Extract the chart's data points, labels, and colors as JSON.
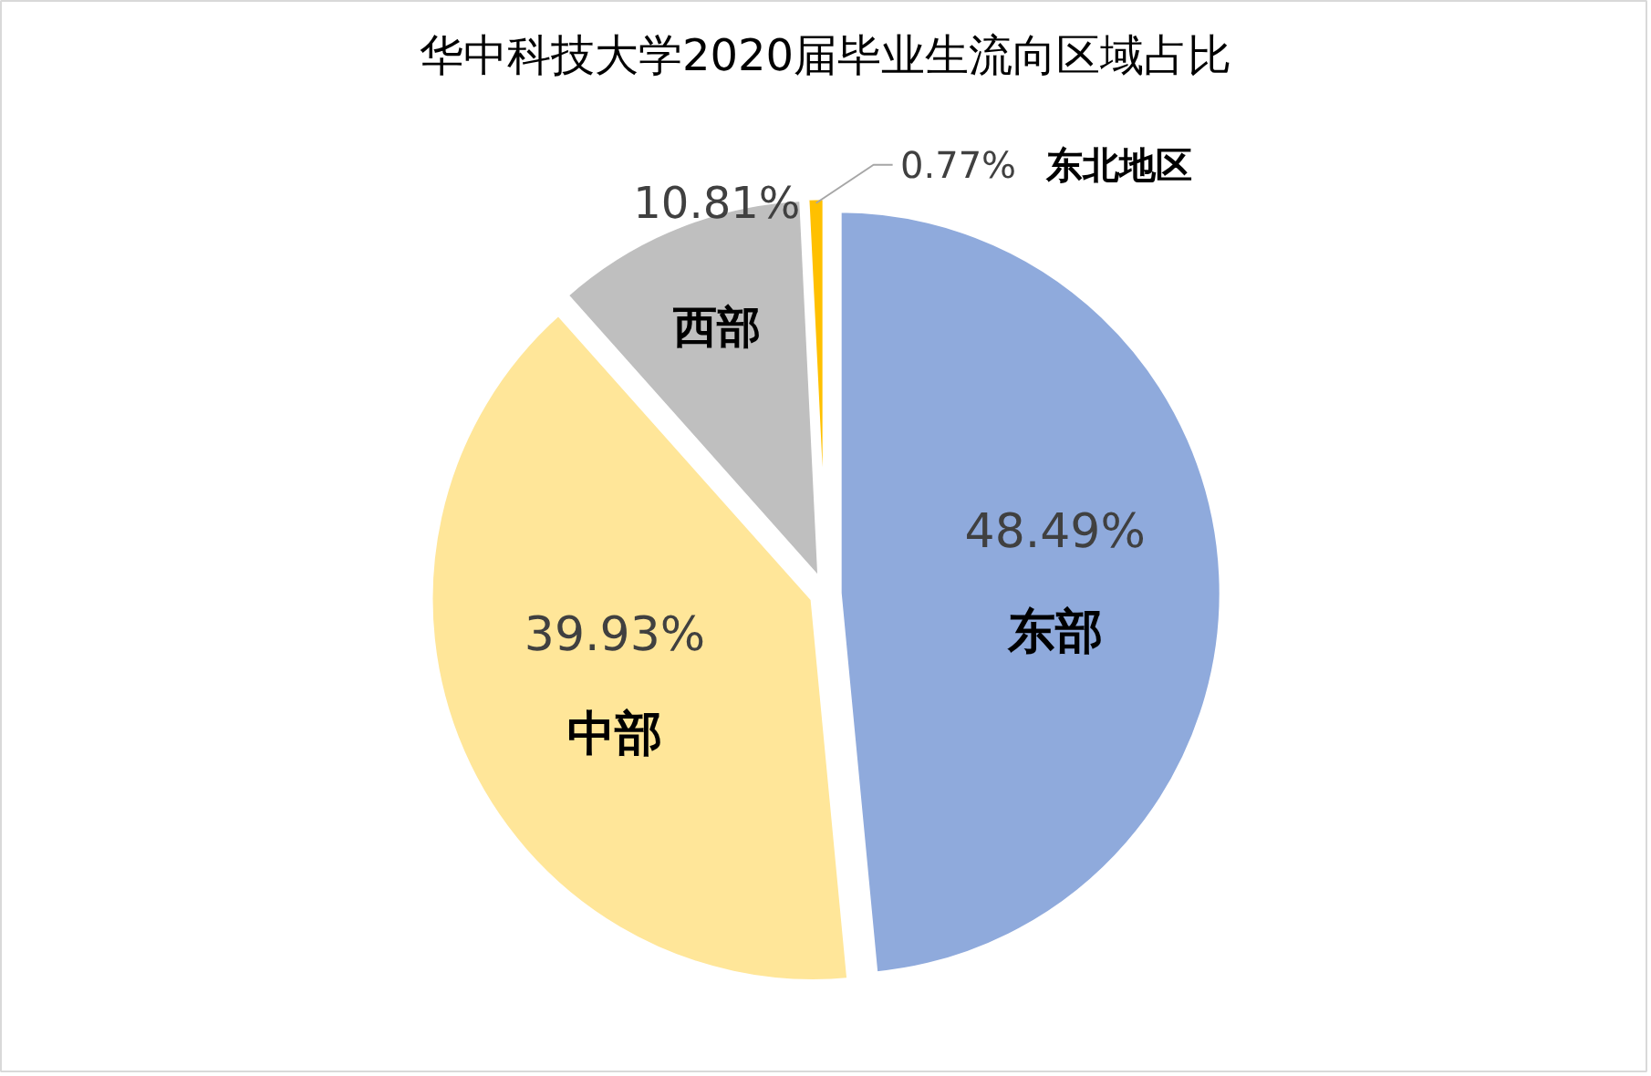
{
  "chart_data": {
    "type": "pie",
    "title": "华中科技大学2020届毕业生流向区域占比",
    "categories": [
      "东部",
      "中部",
      "西部",
      "东北地区"
    ],
    "values": [
      48.49,
      39.93,
      10.81,
      0.77
    ],
    "colors": [
      "#8faadc",
      "#ffe699",
      "#bfbfbf",
      "#ffc000"
    ],
    "value_labels": [
      "48.49%",
      "39.93%",
      "10.81%",
      "0.77%"
    ]
  }
}
